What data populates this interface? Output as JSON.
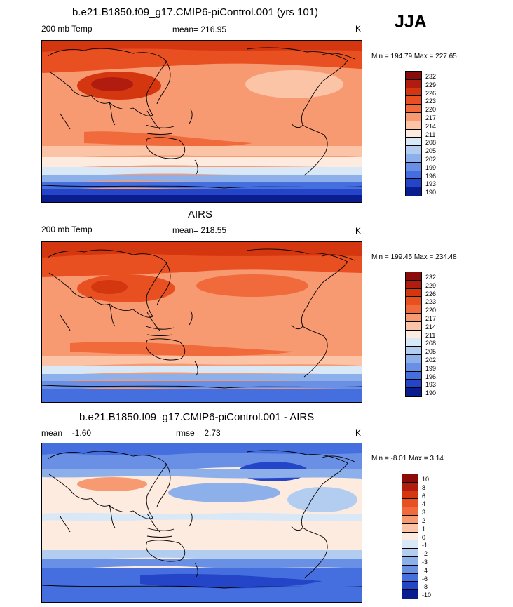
{
  "season": "JJA",
  "panels": [
    {
      "title": "b.e21.B1850.f09_g17.CMIP6-piControl.001 (yrs 101)",
      "variable": "200 mb Temp",
      "stat": "mean= 216.95",
      "units": "K",
      "minmax": "Min = 194.79 Max = 227.65",
      "levels": [
        "232",
        "229",
        "226",
        "223",
        "220",
        "217",
        "214",
        "211",
        "208",
        "205",
        "202",
        "199",
        "196",
        "193",
        "190"
      ],
      "colors": [
        "#8b0b0b",
        "#b01d10",
        "#d4360f",
        "#e85022",
        "#f06a3c",
        "#f79a72",
        "#fbc4a7",
        "#fdebe0",
        "#d9e8f7",
        "#b3cdf0",
        "#8db0eb",
        "#6a90e6",
        "#456fdf",
        "#2545c9",
        "#0a1d8f"
      ]
    },
    {
      "title": "AIRS",
      "variable": "200 mb Temp",
      "stat": "mean= 218.55",
      "units": "K",
      "minmax": "Min = 199.45 Max = 234.48",
      "levels": [
        "232",
        "229",
        "226",
        "223",
        "220",
        "217",
        "214",
        "211",
        "208",
        "205",
        "202",
        "199",
        "196",
        "193",
        "190"
      ],
      "colors": [
        "#8b0b0b",
        "#b01d10",
        "#d4360f",
        "#e85022",
        "#f06a3c",
        "#f79a72",
        "#fbc4a7",
        "#fdebe0",
        "#d9e8f7",
        "#b3cdf0",
        "#8db0eb",
        "#6a90e6",
        "#456fdf",
        "#2545c9",
        "#0a1d8f"
      ]
    },
    {
      "title": "b.e21.B1850.f09_g17.CMIP6-piControl.001 - AIRS",
      "variable": "mean =  -1.60",
      "stat": "rmse =   2.73",
      "units": "K",
      "minmax": "Min =  -8.01 Max =   3.14",
      "levels": [
        "10",
        "8",
        "6",
        "4",
        "3",
        "2",
        "1",
        "0",
        "-1",
        "-2",
        "-3",
        "-4",
        "-6",
        "-8",
        "-10"
      ],
      "colors": [
        "#8b0b0b",
        "#b01d10",
        "#d4360f",
        "#e85022",
        "#f06a3c",
        "#f79a72",
        "#fbc4a7",
        "#fdebe0",
        "#d9e8f7",
        "#b3cdf0",
        "#8db0eb",
        "#6a90e6",
        "#456fdf",
        "#2545c9",
        "#0a1d8f"
      ]
    }
  ]
}
